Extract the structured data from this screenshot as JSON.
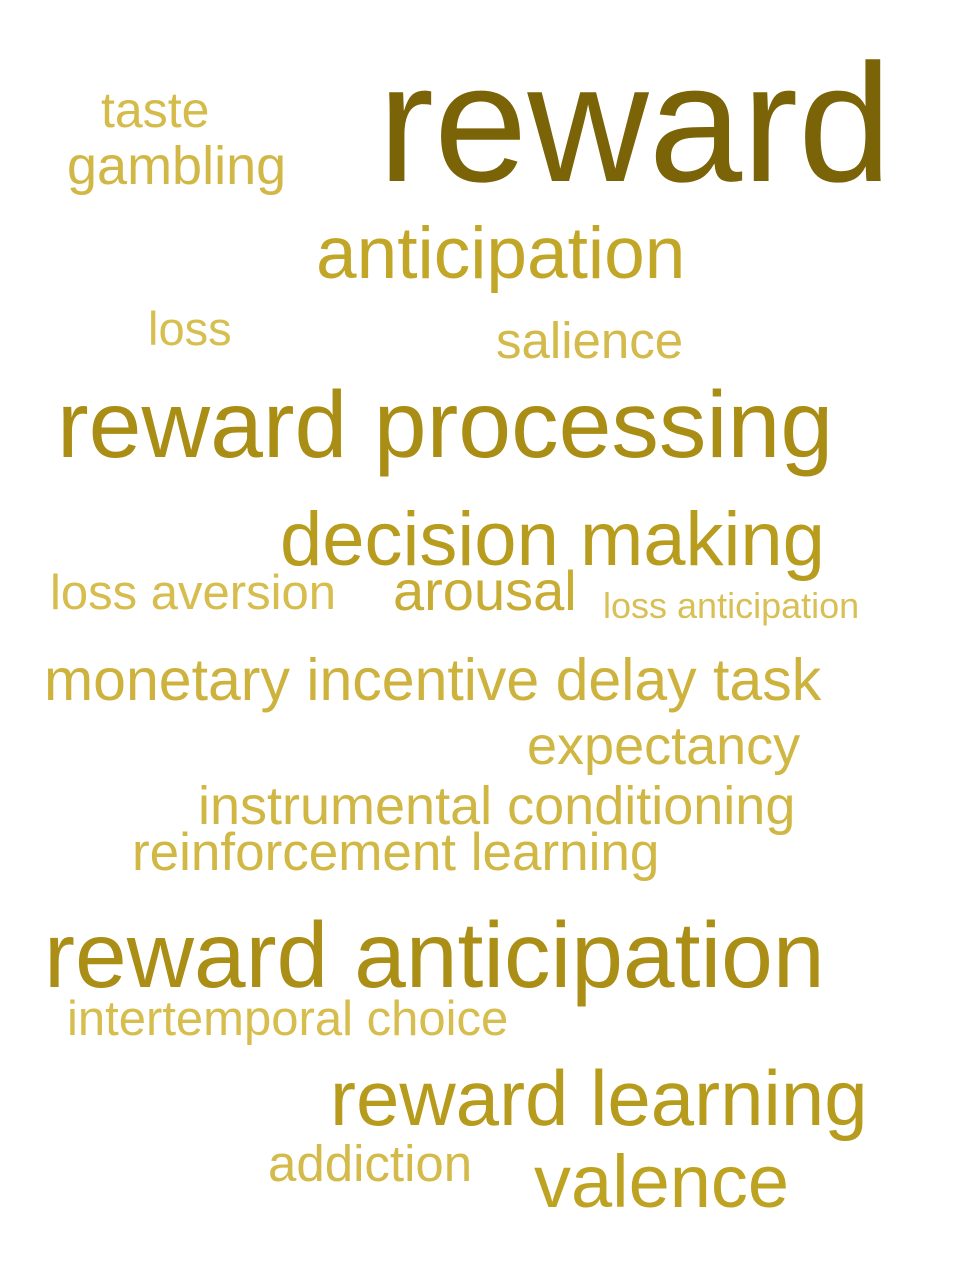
{
  "words": [
    {
      "id": "w-reward",
      "text": "reward",
      "color": "#7b6308"
    },
    {
      "id": "w-taste",
      "text": "taste",
      "color": "#d4bb4a"
    },
    {
      "id": "w-gambling",
      "text": "gambling",
      "color": "#d1b846"
    },
    {
      "id": "w-anticipation",
      "text": "anticipation",
      "color": "#c2a627"
    },
    {
      "id": "w-loss",
      "text": "loss",
      "color": "#d6be4f"
    },
    {
      "id": "w-salience",
      "text": "salience",
      "color": "#d3ba4a"
    },
    {
      "id": "w-reward-processing",
      "text": "reward processing",
      "color": "#a98d14"
    },
    {
      "id": "w-decision-making",
      "text": "decision making",
      "color": "#b89c1e"
    },
    {
      "id": "w-loss-aversion",
      "text": "loss aversion",
      "color": "#d6bd4e"
    },
    {
      "id": "w-arousal",
      "text": "arousal",
      "color": "#c8ac33"
    },
    {
      "id": "w-loss-anticipation",
      "text": "loss anticipation",
      "color": "#d8c056"
    },
    {
      "id": "w-monetary",
      "text": "monetary incentive delay task",
      "color": "#cdb23d"
    },
    {
      "id": "w-expectancy",
      "text": "expectancy",
      "color": "#d0b643"
    },
    {
      "id": "w-instrumental",
      "text": "instrumental conditioning",
      "color": "#d0b643"
    },
    {
      "id": "w-reinforcement",
      "text": "reinforcement learning",
      "color": "#d1b744"
    },
    {
      "id": "w-reward-anticipation",
      "text": "reward anticipation",
      "color": "#ab8e16"
    },
    {
      "id": "w-intertemporal",
      "text": "intertemporal choice",
      "color": "#d6bd4e"
    },
    {
      "id": "w-reward-learning",
      "text": "reward learning",
      "color": "#b79b1d"
    },
    {
      "id": "w-addiction",
      "text": "addiction",
      "color": "#d3ba4a"
    },
    {
      "id": "w-valence",
      "text": "valence",
      "color": "#bea222"
    }
  ]
}
